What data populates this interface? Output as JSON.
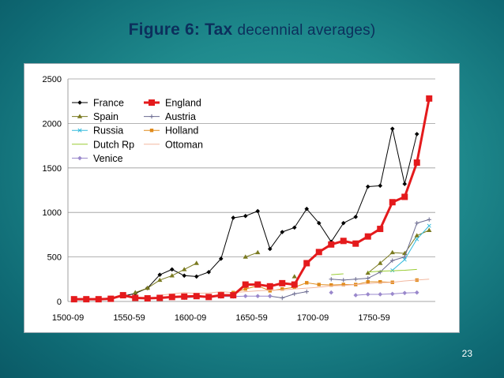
{
  "title_bold": "Figure 6: Tax",
  "title_rest": "decennial averages)",
  "page_number": "23",
  "chart_data": {
    "type": "line",
    "title": "Figure 6: Tax decennial averages)",
    "xlabel": "",
    "ylabel": "",
    "x": [
      "1500-09",
      "1510-19",
      "1520-29",
      "1530-39",
      "1540-49",
      "1550-59",
      "1560-69",
      "1570-79",
      "1580-89",
      "1590-99",
      "1600-09",
      "1610-19",
      "1620-29",
      "1630-39",
      "1640-49",
      "1650-59",
      "1660-69",
      "1670-79",
      "1680-89",
      "1690-99",
      "1700-09",
      "1710-19",
      "1720-29",
      "1730-39",
      "1740-49",
      "1750-59",
      "1760-69",
      "1770-79",
      "1780-89",
      "1790-99"
    ],
    "x_tick_labels": [
      "1500-09",
      "1550-59",
      "1600-09",
      "1650-59",
      "1700-09",
      "1750-59"
    ],
    "ylim": [
      0,
      2500
    ],
    "y_ticks": [
      0,
      500,
      1000,
      1500,
      2000,
      2500
    ],
    "grid": "horizontal",
    "legend_position": "top-left",
    "series": [
      {
        "name": "France",
        "color": "#000000",
        "marker": "diamond",
        "width": 1,
        "values": [
          20,
          25,
          30,
          40,
          60,
          90,
          150,
          300,
          360,
          290,
          280,
          330,
          480,
          940,
          960,
          1015,
          590,
          780,
          830,
          1040,
          880,
          670,
          880,
          950,
          1290,
          1300,
          1940,
          1320,
          1880,
          null
        ]
      },
      {
        "name": "England",
        "color": "#e41a1c",
        "marker": "square",
        "width": 3,
        "values": [
          25,
          25,
          25,
          30,
          70,
          40,
          35,
          40,
          50,
          55,
          60,
          50,
          70,
          70,
          190,
          190,
          170,
          205,
          190,
          430,
          555,
          640,
          680,
          650,
          730,
          815,
          1115,
          1175,
          1560,
          2280
        ]
      },
      {
        "name": "Spain",
        "color": "#7a7a20",
        "marker": "triangle",
        "width": 1,
        "values": [
          null,
          null,
          null,
          null,
          null,
          100,
          150,
          240,
          290,
          360,
          430,
          null,
          null,
          null,
          500,
          550,
          null,
          null,
          280,
          null,
          null,
          null,
          null,
          null,
          320,
          430,
          550,
          540,
          740,
          800
        ]
      },
      {
        "name": "Austria",
        "color": "#6a6a90",
        "marker": "plus",
        "width": 1,
        "values": [
          null,
          null,
          null,
          null,
          null,
          null,
          null,
          null,
          null,
          null,
          null,
          null,
          null,
          null,
          null,
          null,
          60,
          40,
          85,
          110,
          null,
          250,
          240,
          250,
          260,
          330,
          460,
          500,
          880,
          920
        ]
      },
      {
        "name": "Russia",
        "color": "#33bbdd",
        "marker": "x",
        "width": 1,
        "values": [
          null,
          null,
          null,
          null,
          null,
          null,
          null,
          null,
          null,
          null,
          null,
          null,
          null,
          null,
          null,
          null,
          null,
          null,
          null,
          null,
          null,
          null,
          null,
          null,
          null,
          null,
          350,
          470,
          700,
          850
        ]
      },
      {
        "name": "Holland",
        "color": "#e08a1a",
        "marker": "square",
        "width": 1,
        "values": [
          null,
          null,
          null,
          null,
          null,
          null,
          null,
          null,
          null,
          null,
          null,
          null,
          null,
          100,
          140,
          175,
          120,
          140,
          160,
          210,
          190,
          185,
          190,
          190,
          220,
          220,
          215,
          null,
          240,
          null
        ]
      },
      {
        "name": "Dutch Rp",
        "color": "#99cc33",
        "marker": "none",
        "width": 1,
        "values": [
          null,
          null,
          null,
          null,
          null,
          null,
          null,
          null,
          null,
          null,
          null,
          null,
          null,
          null,
          null,
          null,
          null,
          null,
          null,
          null,
          null,
          300,
          310,
          null,
          330,
          340,
          345,
          350,
          360,
          null
        ]
      },
      {
        "name": "Ottoman",
        "color": "#f2b8a0",
        "marker": "none",
        "width": 1,
        "values": [
          null,
          null,
          null,
          null,
          null,
          null,
          null,
          70,
          85,
          100,
          90,
          95,
          110,
          100,
          110,
          120,
          125,
          130,
          140,
          150,
          160,
          175,
          180,
          190,
          200,
          210,
          215,
          230,
          240,
          250
        ]
      },
      {
        "name": "Venice",
        "color": "#9a88cc",
        "marker": "diamond",
        "width": 1,
        "values": [
          null,
          null,
          null,
          null,
          null,
          null,
          null,
          null,
          null,
          40,
          50,
          55,
          55,
          55,
          60,
          60,
          60,
          null,
          null,
          null,
          null,
          100,
          null,
          70,
          80,
          80,
          85,
          95,
          100,
          null
        ]
      }
    ]
  }
}
